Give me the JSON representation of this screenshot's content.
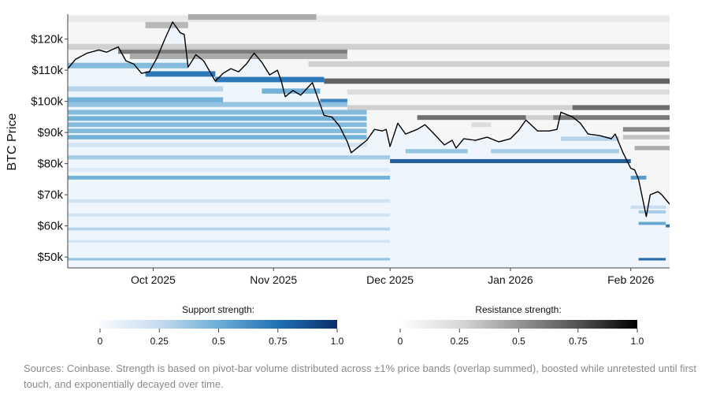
{
  "chart_data": {
    "type": "heatmap",
    "ylabel": "BTC Price",
    "xlabel": "",
    "xlim": [
      "2025-09-09",
      "2026-02-11"
    ],
    "ylim": [
      46500,
      128000
    ],
    "y_ticks": [
      {
        "value": 120000,
        "label": "$120k"
      },
      {
        "value": 110000,
        "label": "$110k"
      },
      {
        "value": 100000,
        "label": "$100k"
      },
      {
        "value": 90000,
        "label": "$90k"
      },
      {
        "value": 80000,
        "label": "$80k"
      },
      {
        "value": 70000,
        "label": "$70k"
      },
      {
        "value": 60000,
        "label": "$60k"
      },
      {
        "value": 50000,
        "label": "$50k"
      }
    ],
    "x_ticks": [
      {
        "date": "2025-10-01",
        "label": "Oct 2025"
      },
      {
        "date": "2025-11-01",
        "label": "Nov 2025"
      },
      {
        "date": "2025-12-01",
        "label": "Dec 2025"
      },
      {
        "date": "2026-01-01",
        "label": "Jan 2026"
      },
      {
        "date": "2026-02-01",
        "label": "Feb 2026"
      }
    ],
    "price_series": [
      [
        "2025-09-09",
        110500
      ],
      [
        "2025-09-11",
        113500
      ],
      [
        "2025-09-14",
        115500
      ],
      [
        "2025-09-17",
        116500
      ],
      [
        "2025-09-19",
        115800
      ],
      [
        "2025-09-22",
        117500
      ],
      [
        "2025-09-24",
        113000
      ],
      [
        "2025-09-26",
        112000
      ],
      [
        "2025-09-28",
        109000
      ],
      [
        "2025-09-30",
        109500
      ],
      [
        "2025-10-02",
        114000
      ],
      [
        "2025-10-04",
        120000
      ],
      [
        "2025-10-06",
        125500
      ],
      [
        "2025-10-08",
        122000
      ],
      [
        "2025-10-09",
        121500
      ],
      [
        "2025-10-10",
        111000
      ],
      [
        "2025-10-12",
        115000
      ],
      [
        "2025-10-14",
        113000
      ],
      [
        "2025-10-17",
        106500
      ],
      [
        "2025-10-19",
        109000
      ],
      [
        "2025-10-21",
        110500
      ],
      [
        "2025-10-23",
        109500
      ],
      [
        "2025-10-25",
        112000
      ],
      [
        "2025-10-27",
        115500
      ],
      [
        "2025-10-29",
        112500
      ],
      [
        "2025-10-31",
        108500
      ],
      [
        "2025-11-02",
        110000
      ],
      [
        "2025-11-03",
        106500
      ],
      [
        "2025-11-04",
        101500
      ],
      [
        "2025-11-06",
        103500
      ],
      [
        "2025-11-08",
        102000
      ],
      [
        "2025-11-11",
        106000
      ],
      [
        "2025-11-13",
        99000
      ],
      [
        "2025-11-14",
        95500
      ],
      [
        "2025-11-16",
        95000
      ],
      [
        "2025-11-18",
        92000
      ],
      [
        "2025-11-20",
        87000
      ],
      [
        "2025-11-21",
        83500
      ],
      [
        "2025-11-23",
        85500
      ],
      [
        "2025-11-25",
        87500
      ],
      [
        "2025-11-27",
        91000
      ],
      [
        "2025-11-29",
        90500
      ],
      [
        "2025-11-30",
        91000
      ],
      [
        "2025-12-01",
        85500
      ],
      [
        "2025-12-03",
        93000
      ],
      [
        "2025-12-05",
        89500
      ],
      [
        "2025-12-08",
        91000
      ],
      [
        "2025-12-10",
        92500
      ],
      [
        "2025-12-12",
        90000
      ],
      [
        "2025-12-15",
        86000
      ],
      [
        "2025-12-17",
        87500
      ],
      [
        "2025-12-18",
        85000
      ],
      [
        "2025-12-20",
        88000
      ],
      [
        "2025-12-23",
        87500
      ],
      [
        "2025-12-26",
        88500
      ],
      [
        "2025-12-29",
        87000
      ],
      [
        "2026-01-01",
        88000
      ],
      [
        "2026-01-03",
        90500
      ],
      [
        "2026-01-05",
        94000
      ],
      [
        "2026-01-08",
        90500
      ],
      [
        "2026-01-11",
        90500
      ],
      [
        "2026-01-13",
        91000
      ],
      [
        "2026-01-14",
        96500
      ],
      [
        "2026-01-17",
        95000
      ],
      [
        "2026-01-19",
        93000
      ],
      [
        "2026-01-21",
        89500
      ],
      [
        "2026-01-24",
        89000
      ],
      [
        "2026-01-27",
        88000
      ],
      [
        "2026-01-28",
        89500
      ],
      [
        "2026-01-30",
        83500
      ],
      [
        "2026-02-01",
        78500
      ],
      [
        "2026-02-02",
        78000
      ],
      [
        "2026-02-03",
        75000
      ],
      [
        "2026-02-05",
        63000
      ],
      [
        "2026-02-06",
        70000
      ],
      [
        "2026-02-08",
        71000
      ],
      [
        "2026-02-09",
        70000
      ],
      [
        "2026-02-11",
        67000
      ]
    ],
    "resistance_levels": [
      [
        126500,
        0.15,
        "2025-09-09",
        "2026-02-11"
      ],
      [
        127200,
        0.45,
        "2025-10-10",
        "2025-11-12"
      ],
      [
        124500,
        0.4,
        "2025-09-29",
        "2025-10-10"
      ],
      [
        116200,
        0.65,
        "2025-09-22",
        "2025-11-20"
      ],
      [
        114500,
        0.45,
        "2025-09-25",
        "2025-11-20"
      ],
      [
        117500,
        0.3,
        "2025-09-09",
        "2026-02-11"
      ],
      [
        112000,
        0.3,
        "2025-11-10",
        "2026-02-11"
      ],
      [
        106500,
        0.75,
        "2025-11-14",
        "2026-02-11"
      ],
      [
        103000,
        0.25,
        "2025-11-20",
        "2026-02-11"
      ],
      [
        98000,
        0.3,
        "2025-11-20",
        "2026-02-11"
      ],
      [
        98000,
        0.7,
        "2026-01-17",
        "2026-02-11"
      ],
      [
        94800,
        0.7,
        "2025-12-08",
        "2026-01-05"
      ],
      [
        94800,
        0.65,
        "2026-01-12",
        "2026-02-11"
      ],
      [
        94800,
        0.3,
        "2026-01-05",
        "2026-01-12"
      ],
      [
        91000,
        0.6,
        "2026-01-30",
        "2026-02-11"
      ],
      [
        88500,
        0.35,
        "2026-01-30",
        "2026-02-11"
      ],
      [
        85000,
        0.45,
        "2026-02-02",
        "2026-02-11"
      ],
      [
        92500,
        0.25,
        "2025-12-22",
        "2025-12-27"
      ]
    ],
    "support_levels": [
      [
        111500,
        0.45,
        "2025-09-09",
        "2025-10-10"
      ],
      [
        108800,
        0.75,
        "2025-09-29",
        "2025-10-17"
      ],
      [
        107000,
        0.75,
        "2025-10-17",
        "2025-11-14"
      ],
      [
        103300,
        0.5,
        "2025-10-29",
        "2025-11-13"
      ],
      [
        100000,
        0.7,
        "2025-11-13",
        "2025-11-20"
      ],
      [
        104000,
        0.3,
        "2025-09-09",
        "2025-10-19"
      ],
      [
        100500,
        0.5,
        "2025-09-09",
        "2025-10-19"
      ],
      [
        99000,
        0.4,
        "2025-09-09",
        "2025-11-20"
      ],
      [
        96500,
        0.45,
        "2025-09-09",
        "2025-11-25"
      ],
      [
        94500,
        0.5,
        "2025-09-09",
        "2025-11-25"
      ],
      [
        92500,
        0.45,
        "2025-09-09",
        "2025-11-25"
      ],
      [
        90500,
        0.45,
        "2025-09-09",
        "2025-11-25"
      ],
      [
        88500,
        0.5,
        "2025-09-09",
        "2025-11-25"
      ],
      [
        86000,
        0.2,
        "2025-09-09",
        "2025-11-25"
      ],
      [
        82000,
        0.35,
        "2025-09-09",
        "2025-12-01"
      ],
      [
        80800,
        0.85,
        "2025-12-01",
        "2026-02-01"
      ],
      [
        84000,
        0.4,
        "2025-12-05",
        "2025-12-21"
      ],
      [
        84000,
        0.35,
        "2025-12-27",
        "2026-01-29"
      ],
      [
        88000,
        0.3,
        "2026-01-14",
        "2026-01-29"
      ],
      [
        75500,
        0.5,
        "2025-09-09",
        "2025-12-01"
      ],
      [
        75500,
        0.6,
        "2026-02-01",
        "2026-02-05"
      ],
      [
        78000,
        0.15,
        "2025-09-09",
        "2025-12-01"
      ],
      [
        68000,
        0.2,
        "2025-09-09",
        "2025-12-01"
      ],
      [
        66000,
        0.25,
        "2026-02-01",
        "2026-02-10"
      ],
      [
        63500,
        0.2,
        "2025-09-09",
        "2025-12-01"
      ],
      [
        60800,
        0.55,
        "2026-02-03",
        "2026-02-10"
      ],
      [
        60000,
        0.75,
        "2026-02-10",
        "2026-02-11"
      ],
      [
        59000,
        0.3,
        "2025-09-09",
        "2025-12-01"
      ],
      [
        55000,
        0.2,
        "2025-09-09",
        "2025-12-01"
      ],
      [
        49300,
        0.4,
        "2025-09-09",
        "2025-12-01"
      ],
      [
        49300,
        0.8,
        "2026-02-03",
        "2026-02-10"
      ],
      [
        64500,
        0.35,
        "2026-02-03",
        "2026-02-10"
      ]
    ],
    "grid": false
  },
  "legend": {
    "support": {
      "title": "Support strength:",
      "ticks": [
        "0",
        "0.25",
        "0.5",
        "0.75",
        "1.0"
      ],
      "colors": [
        "#f7fbff",
        "#c6dbef",
        "#6baed6",
        "#2171b5",
        "#08306b"
      ]
    },
    "resistance": {
      "title": "Resistance strength:",
      "ticks": [
        "0",
        "0.25",
        "0.5",
        "0.75",
        "1.0"
      ],
      "colors": [
        "#ffffff",
        "#d9d9d9",
        "#969696",
        "#525252",
        "#000000"
      ]
    }
  },
  "footnote": "Sources: Coinbase. Strength is based on pivot-bar volume distributed across ±1% price bands (overlap summed), boosted while unretested until first touch, and exponentially decayed over time."
}
